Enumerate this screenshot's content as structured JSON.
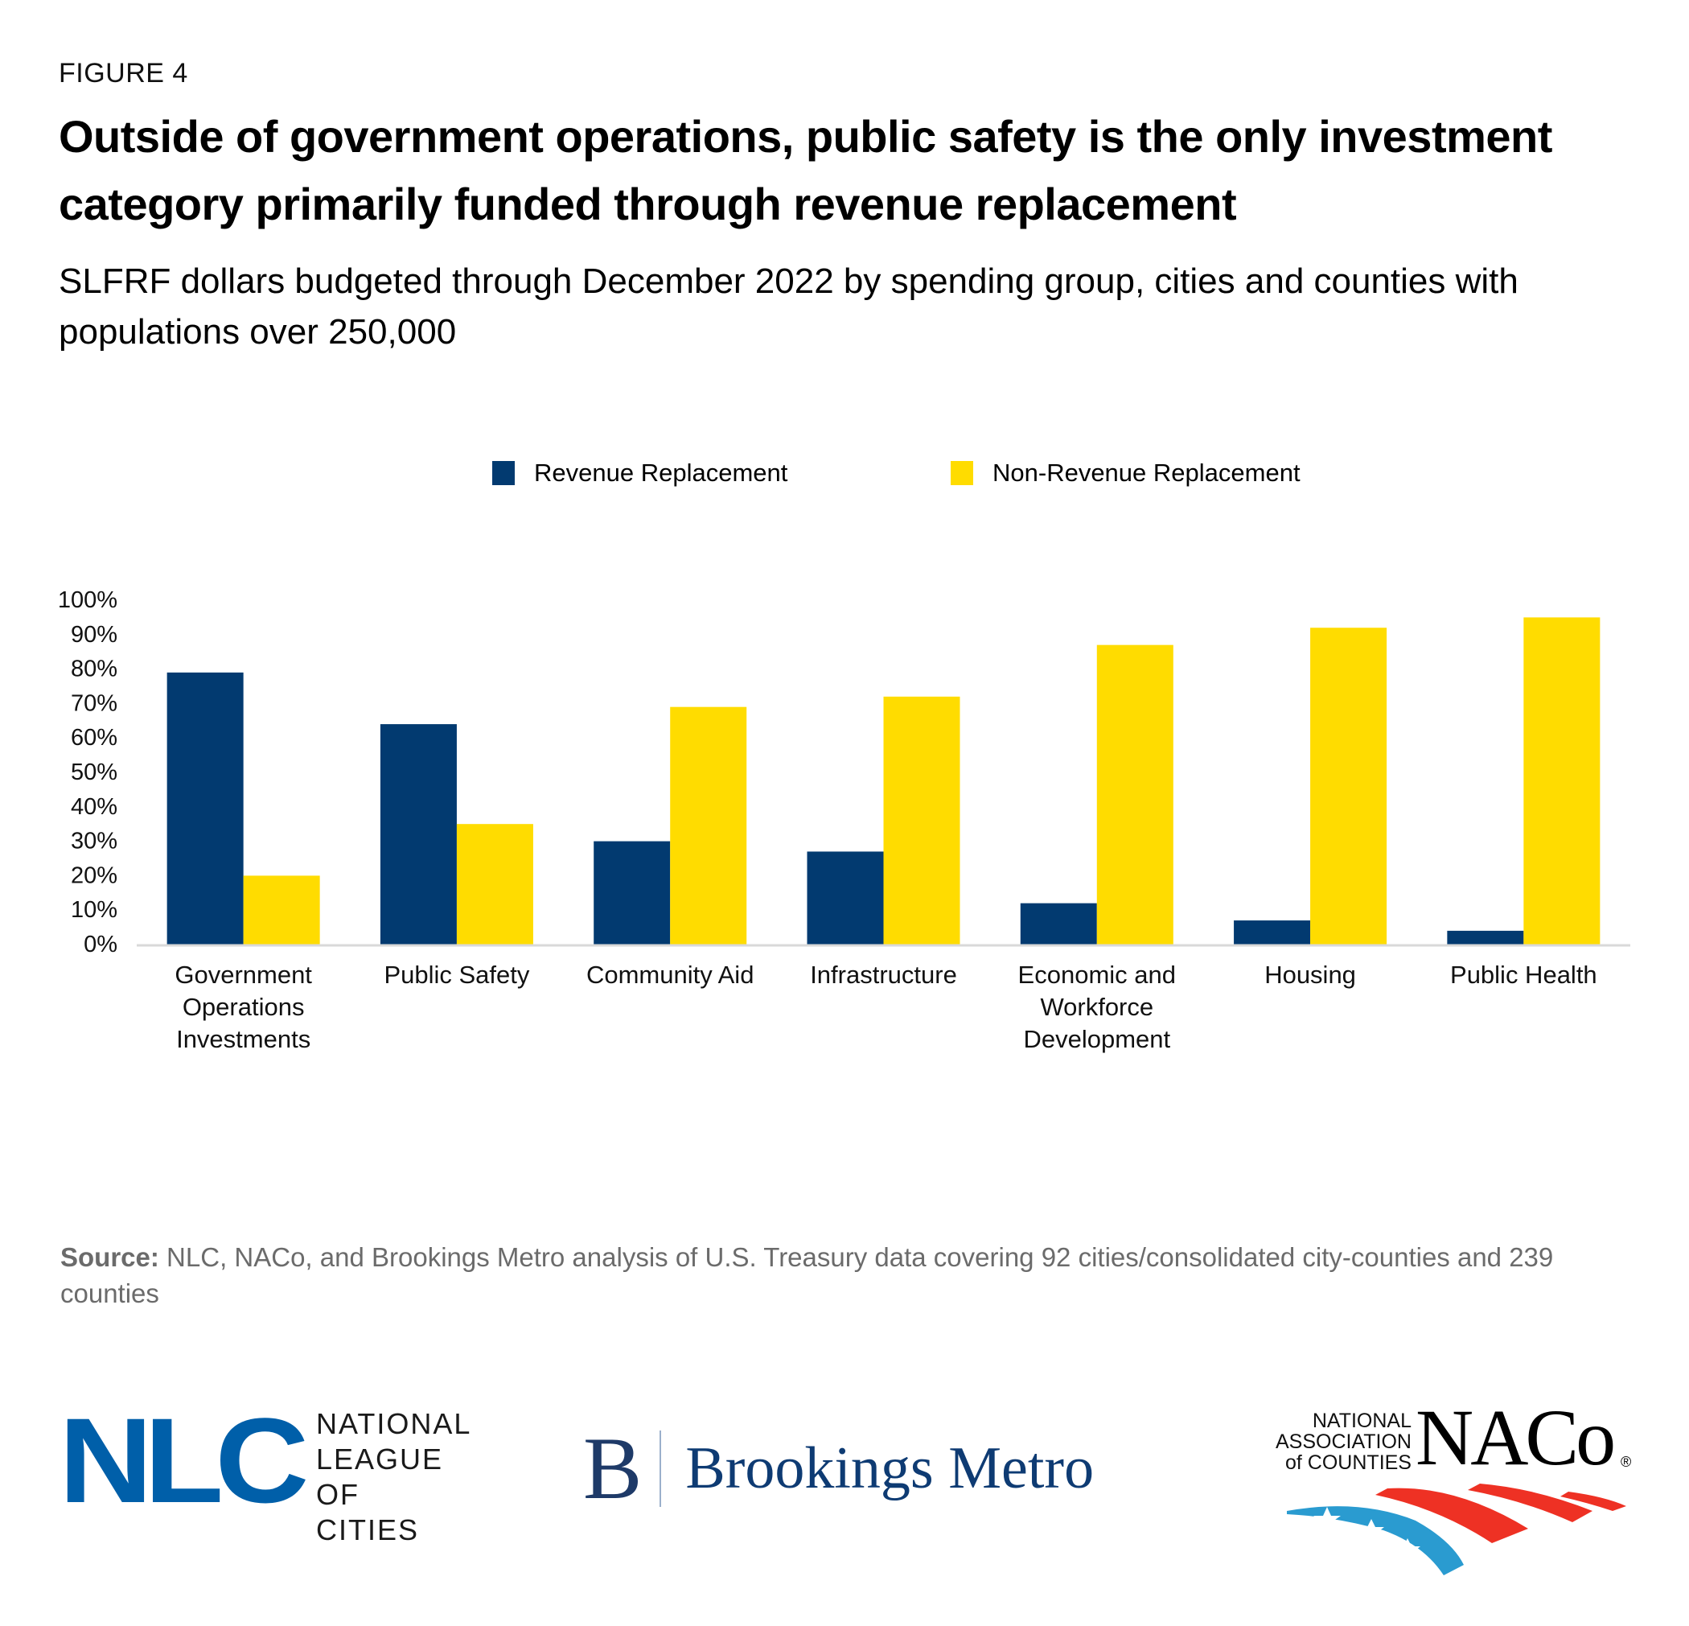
{
  "header": {
    "figure_label": "FIGURE 4",
    "title": "Outside of government operations, public safety is the only investment category primarily funded through revenue replacement",
    "subtitle": "SLFRF dollars budgeted through December 2022 by spending group, cities and counties with populations over 250,000"
  },
  "colors": {
    "revenue_replacement": "#023a70",
    "non_revenue_replacement": "#ffdc00",
    "axis_line": "#d9d9d9",
    "source_text": "#6b6b6b"
  },
  "legend": {
    "position": "top-center",
    "items": [
      {
        "label": "Revenue Replacement",
        "color": "#023a70"
      },
      {
        "label": "Non-Revenue Replacement",
        "color": "#ffdc00"
      }
    ]
  },
  "chart_data": {
    "type": "bar",
    "title": "Outside of government operations, public safety is the only investment category primarily funded through revenue replacement",
    "xlabel": "",
    "ylabel": "",
    "ylim": [
      0,
      100
    ],
    "yticks": [
      "0%",
      "10%",
      "20%",
      "30%",
      "40%",
      "50%",
      "60%",
      "70%",
      "80%",
      "90%",
      "100%"
    ],
    "grid": false,
    "legend_position": "top-center",
    "categories": [
      "Government Operations Investments",
      "Public Safety",
      "Community Aid",
      "Infrastructure",
      "Economic and Workforce Development",
      "Housing",
      "Public Health"
    ],
    "category_label_lines": [
      [
        "Government",
        "Operations",
        "Investments"
      ],
      [
        "Public Safety"
      ],
      [
        "Community Aid"
      ],
      [
        "Infrastructure"
      ],
      [
        "Economic and",
        "Workforce",
        "Development"
      ],
      [
        "Housing"
      ],
      [
        "Public Health"
      ]
    ],
    "series": [
      {
        "name": "Revenue Replacement",
        "color": "#023a70",
        "values": [
          79,
          64,
          30,
          27,
          12,
          7,
          4
        ]
      },
      {
        "name": "Non-Revenue Replacement",
        "color": "#ffdc00",
        "values": [
          20,
          35,
          69,
          72,
          87,
          92,
          95
        ]
      }
    ],
    "unit": "%"
  },
  "source": {
    "label": "Source:",
    "text": "NLC, NACo, and Brookings Metro analysis of U.S. Treasury data covering 92 cities/consolidated city-counties and 239 counties"
  },
  "logos": {
    "nlc": {
      "mark": "NLC",
      "lines": [
        "NATIONAL",
        "LEAGUE",
        "OF CITIES"
      ],
      "color": "#005fa9"
    },
    "brookings": {
      "mark": "B",
      "name": "Brookings Metro",
      "color": "#0e3b73"
    },
    "naco": {
      "mark": "NACo",
      "registered": "®",
      "lines": [
        "NATIONAL",
        "ASSOCIATION",
        "of COUNTIES"
      ],
      "red": "#ee3124",
      "blue": "#2a9bd0"
    }
  }
}
